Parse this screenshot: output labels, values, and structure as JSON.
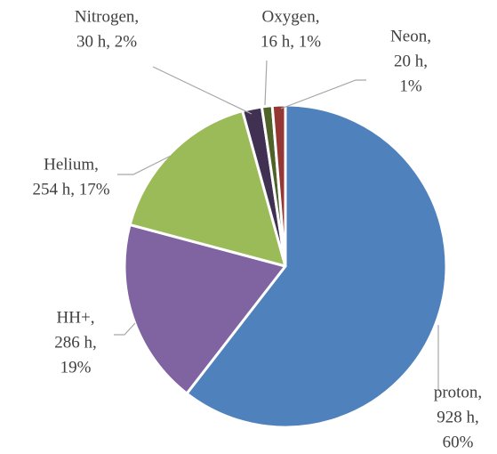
{
  "chart_data": {
    "type": "pie",
    "categories": [
      "proton",
      "HH+",
      "Helium",
      "Nitrogen",
      "Oxygen",
      "Neon"
    ],
    "values": [
      928,
      286,
      254,
      30,
      16,
      20
    ],
    "labels": [
      [
        "proton,",
        "928 h,",
        "60%"
      ],
      [
        "HH+,",
        "286 h,",
        "19%"
      ],
      [
        "Helium,",
        "254 h, 17%"
      ],
      [
        "Nitrogen,",
        "30 h, 2%"
      ],
      [
        "Oxygen,",
        "16 h, 1%"
      ],
      [
        "Neon,",
        "20 h,",
        "1%"
      ]
    ],
    "colors": [
      "#4f81bd",
      "#8064a2",
      "#9bbb59",
      "#403152",
      "#4f6228",
      "#953735"
    ]
  }
}
